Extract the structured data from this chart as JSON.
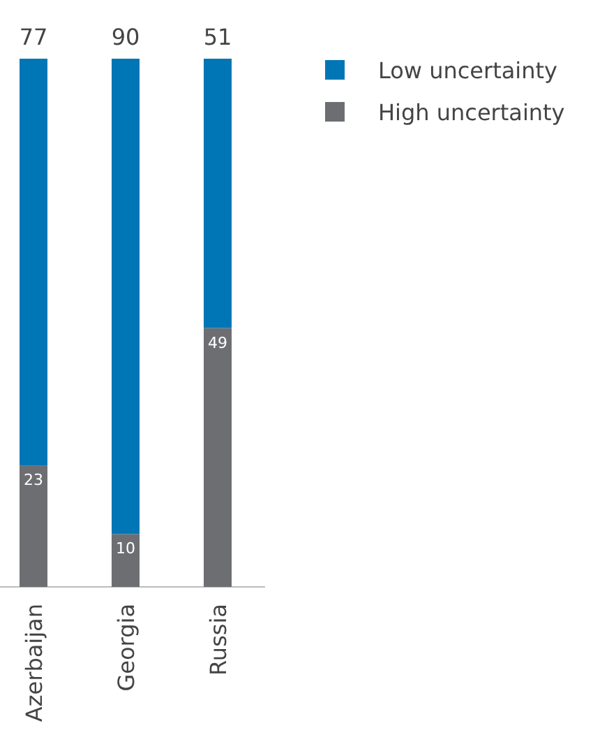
{
  "chart_data": {
    "type": "bar",
    "stacked": true,
    "data_labels": true,
    "legend": "top right",
    "categories": [
      "Azerbaijan",
      "Georgia",
      "Russia"
    ],
    "series": [
      {
        "name": "High uncertainty",
        "color": "#6d6e71",
        "values": [
          23,
          10,
          49
        ]
      },
      {
        "name": "Low uncertainty",
        "color": "#0076b6",
        "values": [
          77,
          90,
          51
        ]
      }
    ]
  }
}
